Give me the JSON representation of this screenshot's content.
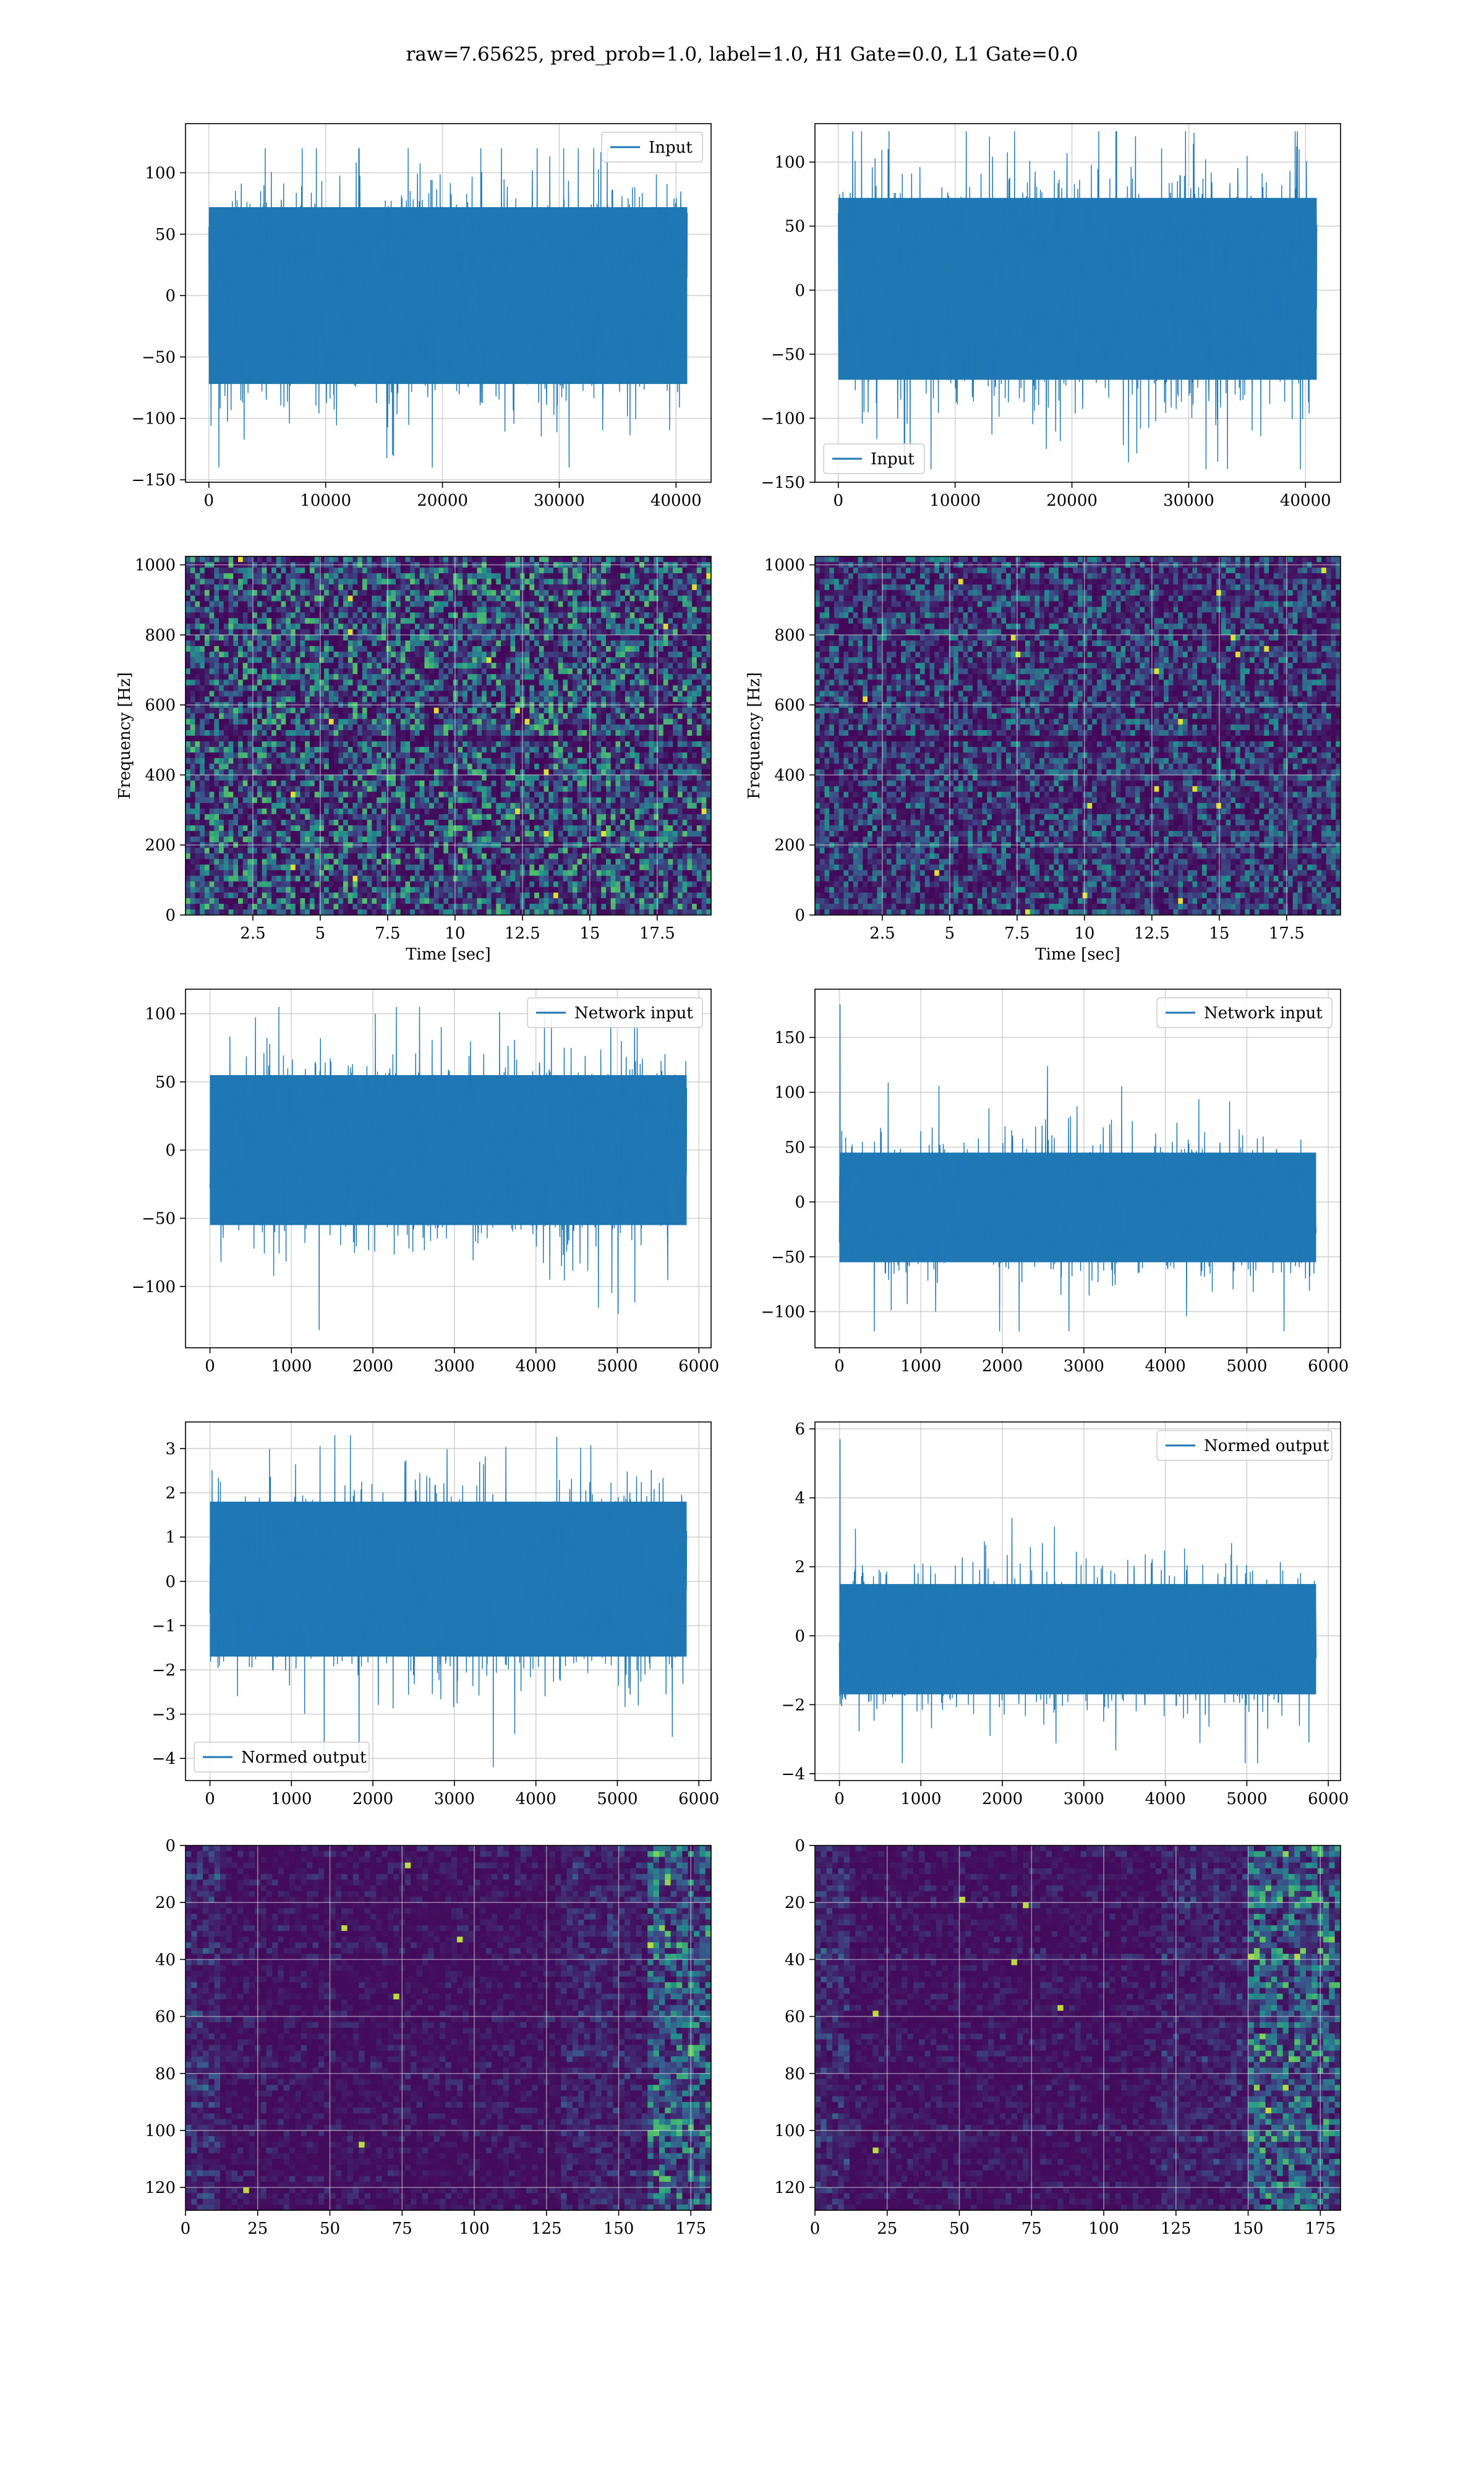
{
  "title": "raw=7.65625, pred_prob=1.0, label=1.0, H1 Gate=0.0, L1 Gate=0.0",
  "colors": {
    "line": "#1f77b4",
    "grid": "#d3d3d3",
    "viridis_low": "#440154",
    "viridis_high": "#fde725"
  },
  "chart_data": [
    {
      "id": "h1-input",
      "type": "line",
      "row": 0,
      "col": 0,
      "series": [
        {
          "name": "Input"
        }
      ],
      "legend_loc": "top-right",
      "xlim": [
        -2000,
        43000
      ],
      "ylim": [
        -152,
        140
      ],
      "xticks": [
        0,
        10000,
        20000,
        30000,
        40000
      ],
      "yticks": [
        -150,
        -100,
        -50,
        0,
        50,
        100
      ],
      "signal": {
        "x_start": 0,
        "x_end": 40960,
        "band": [
          -72,
          72
        ],
        "min": -140,
        "max": 120
      },
      "xlabel": "",
      "ylabel": "",
      "grid": true
    },
    {
      "id": "l1-input",
      "type": "line",
      "row": 0,
      "col": 1,
      "series": [
        {
          "name": "Input"
        }
      ],
      "legend_loc": "bottom-left",
      "xlim": [
        -2000,
        43000
      ],
      "ylim": [
        -150,
        130
      ],
      "xticks": [
        0,
        10000,
        20000,
        30000,
        40000
      ],
      "yticks": [
        -150,
        -100,
        -50,
        0,
        50,
        100
      ],
      "signal": {
        "x_start": 0,
        "x_end": 40960,
        "band": [
          -70,
          72
        ],
        "min": -140,
        "max": 124
      },
      "xlabel": "",
      "ylabel": "",
      "grid": true
    },
    {
      "id": "h1-spectrogram",
      "type": "heatmap",
      "row": 1,
      "col": 0,
      "xlim": [
        0,
        19.5
      ],
      "ylim": [
        0,
        1024
      ],
      "xticks": [
        2.5,
        5.0,
        7.5,
        10.0,
        12.5,
        15.0,
        17.5
      ],
      "yticks": [
        0,
        200,
        400,
        600,
        800,
        1000
      ],
      "xlabel": "Time [sec]",
      "ylabel": "Frequency [Hz]",
      "colormap": "viridis",
      "dark_band_hz": [
        490,
        520
      ],
      "grid": true
    },
    {
      "id": "l1-spectrogram",
      "type": "heatmap",
      "row": 1,
      "col": 1,
      "xlim": [
        0,
        19.5
      ],
      "ylim": [
        0,
        1024
      ],
      "xticks": [
        2.5,
        5.0,
        7.5,
        10.0,
        12.5,
        15.0,
        17.5
      ],
      "yticks": [
        0,
        200,
        400,
        600,
        800,
        1000
      ],
      "xlabel": "Time [sec]",
      "ylabel": "Frequency [Hz]",
      "colormap": "viridis",
      "dark_band_hz": [
        490,
        520
      ],
      "grid": true
    },
    {
      "id": "h1-network-input",
      "type": "line",
      "row": 2,
      "col": 0,
      "series": [
        {
          "name": "Network input"
        }
      ],
      "legend_loc": "top-right",
      "xlim": [
        -300,
        6150
      ],
      "ylim": [
        -145,
        118
      ],
      "xticks": [
        0,
        1000,
        2000,
        3000,
        4000,
        5000,
        6000
      ],
      "yticks": [
        -100,
        -50,
        0,
        50,
        100
      ],
      "signal": {
        "x_start": 0,
        "x_end": 5850,
        "band": [
          -55,
          55
        ],
        "min": -132,
        "max": 105
      },
      "xlabel": "",
      "ylabel": "",
      "grid": true
    },
    {
      "id": "l1-network-input",
      "type": "line",
      "row": 2,
      "col": 1,
      "series": [
        {
          "name": "Network input"
        }
      ],
      "legend_loc": "top-right",
      "xlim": [
        -300,
        6150
      ],
      "ylim": [
        -133,
        194
      ],
      "xticks": [
        0,
        1000,
        2000,
        3000,
        4000,
        5000,
        6000
      ],
      "yticks": [
        -100,
        -50,
        0,
        50,
        100,
        150
      ],
      "signal": {
        "x_start": 0,
        "x_end": 5850,
        "band": [
          -55,
          45
        ],
        "min": -118,
        "max": 180,
        "spike_at_start": 180
      },
      "xlabel": "",
      "ylabel": "",
      "grid": true
    },
    {
      "id": "h1-normed-output",
      "type": "line",
      "row": 3,
      "col": 0,
      "series": [
        {
          "name": "Normed output"
        }
      ],
      "legend_loc": "bottom-left",
      "xlim": [
        -300,
        6150
      ],
      "ylim": [
        -4.5,
        3.6
      ],
      "xticks": [
        0,
        1000,
        2000,
        3000,
        4000,
        5000,
        6000
      ],
      "yticks": [
        -4,
        -3,
        -2,
        -1,
        0,
        1,
        2,
        3
      ],
      "signal": {
        "x_start": 0,
        "x_end": 5850,
        "band": [
          -1.7,
          1.8
        ],
        "min": -4.2,
        "max": 3.3
      },
      "xlabel": "",
      "ylabel": "",
      "grid": true
    },
    {
      "id": "l1-normed-output",
      "type": "line",
      "row": 3,
      "col": 1,
      "series": [
        {
          "name": "Normed output"
        }
      ],
      "legend_loc": "top-right",
      "xlim": [
        -300,
        6150
      ],
      "ylim": [
        -4.2,
        6.2
      ],
      "xticks": [
        0,
        1000,
        2000,
        3000,
        4000,
        5000,
        6000
      ],
      "yticks": [
        -4,
        -2,
        0,
        2,
        4,
        6
      ],
      "signal": {
        "x_start": 0,
        "x_end": 5850,
        "band": [
          -1.7,
          1.5
        ],
        "min": -3.7,
        "max": 5.7,
        "spike_at_start": 5.7
      },
      "xlabel": "",
      "ylabel": "",
      "grid": true
    },
    {
      "id": "h1-feature-map",
      "type": "heatmap",
      "row": 4,
      "col": 0,
      "xlim": [
        0,
        182
      ],
      "ylim": [
        128,
        0
      ],
      "xticks": [
        0,
        25,
        50,
        75,
        100,
        125,
        150,
        175
      ],
      "yticks": [
        0,
        20,
        40,
        60,
        80,
        100,
        120
      ],
      "xlabel": "",
      "ylabel": "",
      "colormap": "viridis",
      "hot_columns": [
        160,
        182
      ],
      "grid": true
    },
    {
      "id": "l1-feature-map",
      "type": "heatmap",
      "row": 4,
      "col": 1,
      "xlim": [
        0,
        182
      ],
      "ylim": [
        128,
        0
      ],
      "xticks": [
        0,
        25,
        50,
        75,
        100,
        125,
        150,
        175
      ],
      "yticks": [
        0,
        20,
        40,
        60,
        80,
        100,
        120
      ],
      "xlabel": "",
      "ylabel": "",
      "colormap": "viridis",
      "hot_columns": [
        150,
        182
      ],
      "grid": true
    }
  ]
}
